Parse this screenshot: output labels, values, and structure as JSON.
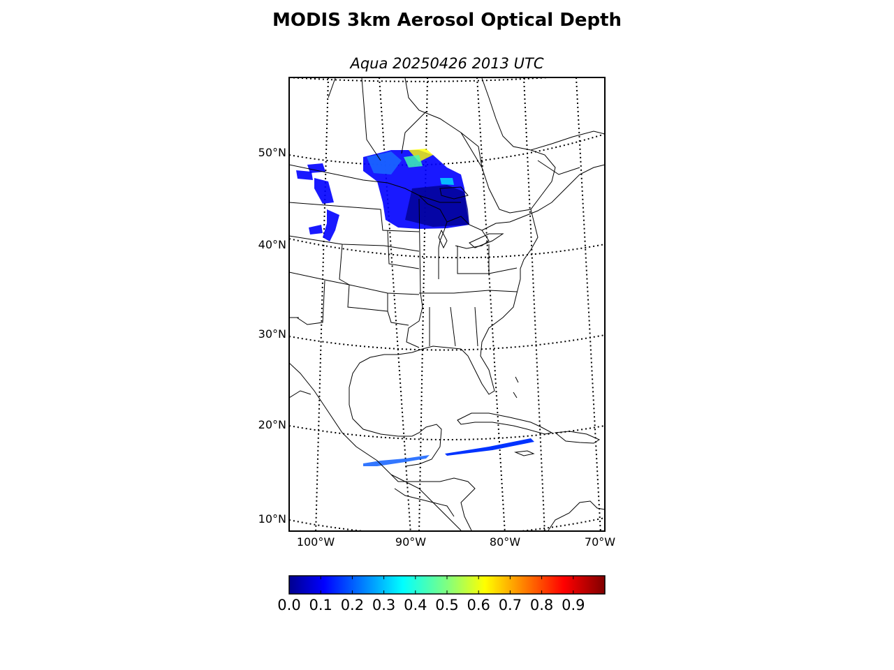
{
  "title": "MODIS 3km Aerosol Optical Depth",
  "subtitle": "Aqua 20250426 2013 UTC",
  "map": {
    "projection": "lambert-conformal",
    "lat_labels": [
      "50°N",
      "40°N",
      "30°N",
      "20°N",
      "10°N"
    ],
    "lon_labels": [
      "100°W",
      "90°W",
      "80°W",
      "70°W"
    ]
  },
  "colorbar": {
    "colormap": "jet",
    "range": [
      0.0,
      1.0
    ],
    "tick_labels": [
      "0.0",
      "0.1",
      "0.2",
      "0.3",
      "0.4",
      "0.5",
      "0.6",
      "0.7",
      "0.8",
      "0.9"
    ]
  },
  "colors": {
    "low": "#00008f",
    "mid": "#80ff80",
    "high": "#800000",
    "coast": "#000000",
    "grid": "#000000"
  }
}
